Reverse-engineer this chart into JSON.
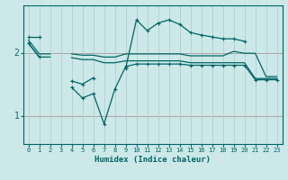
{
  "title": "",
  "xlabel": "Humidex (Indice chaleur)",
  "bg_color": "#cce8e8",
  "line_color": "#006666",
  "grid_major_color": "#aacccc",
  "grid_minor_color": "#bbdddd",
  "red_color": "#cc4444",
  "x": [
    0,
    1,
    2,
    3,
    4,
    5,
    6,
    7,
    8,
    9,
    10,
    11,
    12,
    13,
    14,
    15,
    16,
    17,
    18,
    19,
    20,
    21,
    22,
    23
  ],
  "y_top": [
    2.25,
    2.25,
    null,
    null,
    1.55,
    1.5,
    1.6,
    null,
    null,
    1.75,
    2.52,
    2.35,
    2.47,
    2.52,
    2.45,
    2.32,
    2.28,
    2.25,
    2.22,
    2.22,
    2.18,
    null,
    null,
    null
  ],
  "y_upper": [
    2.2,
    1.98,
    1.98,
    null,
    1.98,
    1.96,
    1.96,
    1.93,
    1.93,
    1.98,
    1.98,
    1.98,
    1.98,
    1.98,
    1.98,
    1.95,
    1.95,
    1.95,
    1.95,
    2.02,
    1.99,
    1.99,
    1.62,
    1.62
  ],
  "y_lower": [
    2.15,
    1.93,
    1.93,
    null,
    1.92,
    1.89,
    1.89,
    1.84,
    1.84,
    1.87,
    1.87,
    1.87,
    1.87,
    1.87,
    1.87,
    1.84,
    1.84,
    1.84,
    1.84,
    1.84,
    1.84,
    1.59,
    1.59,
    1.59
  ],
  "y_bot": [
    2.15,
    1.93,
    null,
    null,
    1.45,
    1.28,
    1.35,
    0.87,
    1.42,
    1.78,
    1.82,
    1.82,
    1.82,
    1.82,
    1.82,
    1.8,
    1.8,
    1.8,
    1.8,
    1.8,
    1.8,
    1.57,
    1.57,
    1.57
  ],
  "ylim": [
    0.55,
    2.75
  ],
  "yticks": [
    1.0,
    2.0
  ],
  "xlim": [
    -0.5,
    23.5
  ]
}
